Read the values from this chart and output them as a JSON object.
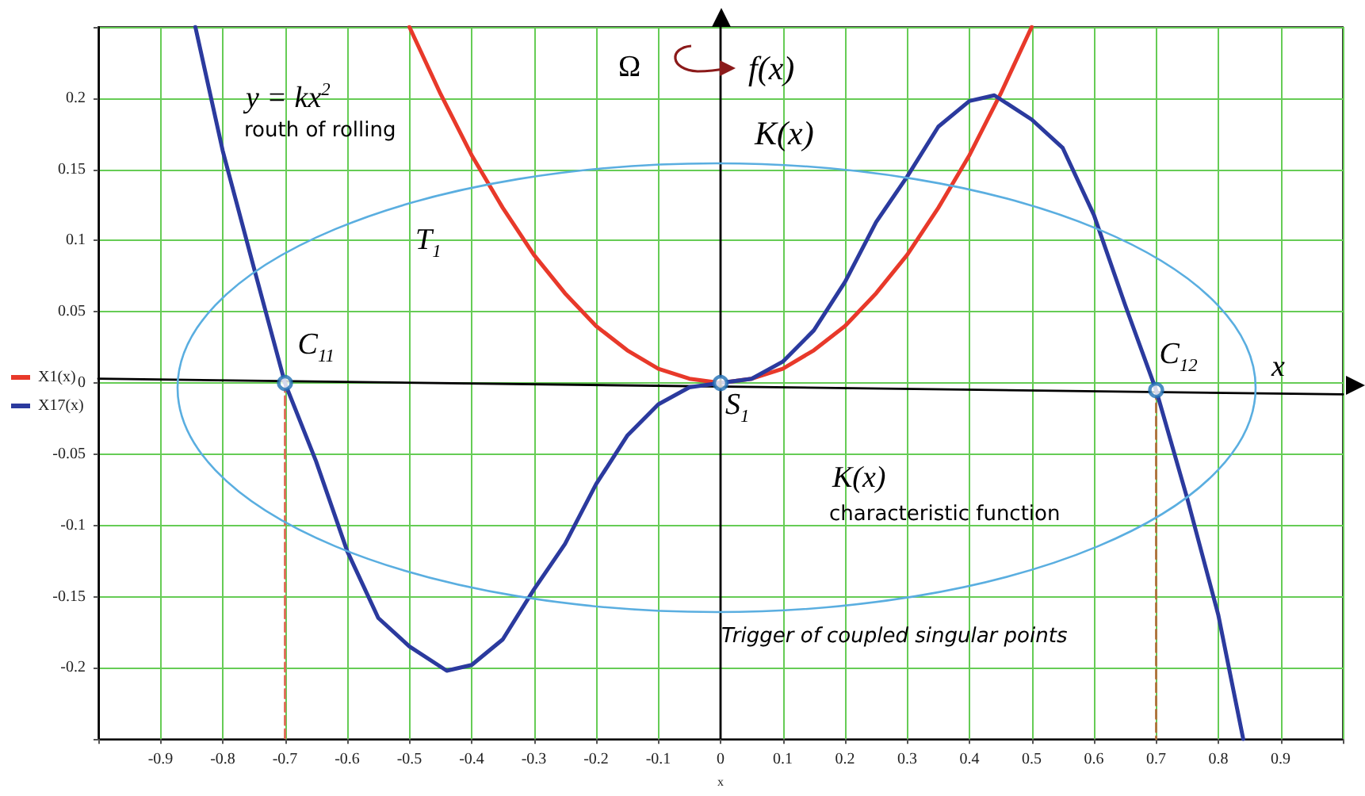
{
  "chart_data": {
    "type": "line",
    "xlabel": "x",
    "xlim": [
      -1,
      1
    ],
    "ylim": [
      -0.25,
      0.25
    ],
    "xticks": [
      {
        "value": -1,
        "label": null
      },
      -0.9,
      -0.8,
      -0.7,
      -0.6,
      -0.5,
      -0.4,
      -0.3,
      -0.2,
      -0.1,
      0,
      0.1,
      0.2,
      0.3,
      0.4,
      0.5,
      0.6,
      0.7,
      0.8,
      0.9,
      {
        "value": 1,
        "label": null
      }
    ],
    "yticks": [
      {
        "value": -0.25,
        "label": null
      },
      -0.2,
      -0.15,
      -0.1,
      -0.05,
      0,
      0.05,
      0.1,
      0.15,
      0.2,
      {
        "value": 0.25,
        "label": null
      }
    ],
    "grid": true,
    "legend": "left",
    "marker": "none",
    "line_style": "solid",
    "series": [
      {
        "color": "#000000",
        "x": [
          -1,
          1
        ],
        "values": [
          0.003,
          -0.008
        ]
      },
      {
        "color": "#e06a55",
        "line_style": "dashed",
        "x": [
          -0.7,
          -0.7
        ],
        "values": [
          0,
          -0.25
        ]
      },
      {
        "color": "#b0703a",
        "line_style": "dashed",
        "x": [
          0.7,
          0.7
        ],
        "values": [
          -0.005,
          -0.25
        ]
      },
      {
        "name": "X1(x)",
        "color": "#e8392a",
        "x": [
          -0.5,
          -0.45,
          -0.4,
          -0.35,
          -0.3,
          -0.25,
          -0.2,
          -0.15,
          -0.1,
          -0.05,
          0,
          0.05,
          0.1,
          0.15,
          0.2,
          0.25,
          0.3,
          0.35,
          0.4,
          0.45,
          0.5
        ],
        "values": [
          0.25,
          0.203,
          0.16,
          0.123,
          0.09,
          0.063,
          0.04,
          0.023,
          0.01,
          0.003,
          0,
          0.003,
          0.01,
          0.023,
          0.04,
          0.063,
          0.09,
          0.123,
          0.16,
          0.203,
          0.25
        ]
      },
      {
        "name": "X17(x)",
        "color": "#2b3a9e",
        "x": [
          -0.844,
          -0.8,
          -0.75,
          -0.7,
          -0.65,
          -0.6,
          -0.55,
          -0.5,
          -0.44,
          -0.4,
          -0.35,
          -0.3,
          -0.25,
          -0.2,
          -0.15,
          -0.1,
          -0.05,
          0,
          0.05,
          0.1,
          0.15,
          0.2,
          0.25,
          0.3,
          0.35,
          0.4,
          0.44,
          0.5,
          0.55,
          0.6,
          0.65,
          0.7,
          0.75,
          0.8,
          0.84
        ],
        "values": [
          0.25,
          0.163,
          0.081,
          0,
          -0.055,
          -0.118,
          -0.165,
          -0.185,
          -0.202,
          -0.198,
          -0.18,
          -0.145,
          -0.113,
          -0.071,
          -0.037,
          -0.015,
          -0.003,
          0,
          0.003,
          0.015,
          0.037,
          0.071,
          0.113,
          0.145,
          0.18,
          0.198,
          0.202,
          0.185,
          0.165,
          0.118,
          0.055,
          -0.005,
          -0.081,
          -0.163,
          -0.25
        ]
      },
      {
        "type": "scatter",
        "marker": "circle",
        "color": "#1f6fb5",
        "x": [
          -0.7,
          0,
          0.7
        ],
        "values": [
          0,
          0,
          -0.005
        ]
      }
    ],
    "ref_lines": [
      {
        "axis": "x",
        "value": 0,
        "color": "#000000"
      }
    ],
    "annotations": [
      "y = kx$^{2}$",
      "routh of rolling",
      "Ω",
      "f(x)",
      "K(x)",
      "T$_{1}$",
      {
        "text": "C$_{11}$",
        "x": -0.7,
        "y": 0
      },
      "x",
      {
        "text": "S$_{1}$",
        "x": 0,
        "y": 0
      },
      "K(x)",
      "characteristic function",
      "Trigger of coupled singular points",
      {
        "text": "C$_{12}$",
        "x": 0.7,
        "y": -0.005
      }
    ]
  }
}
